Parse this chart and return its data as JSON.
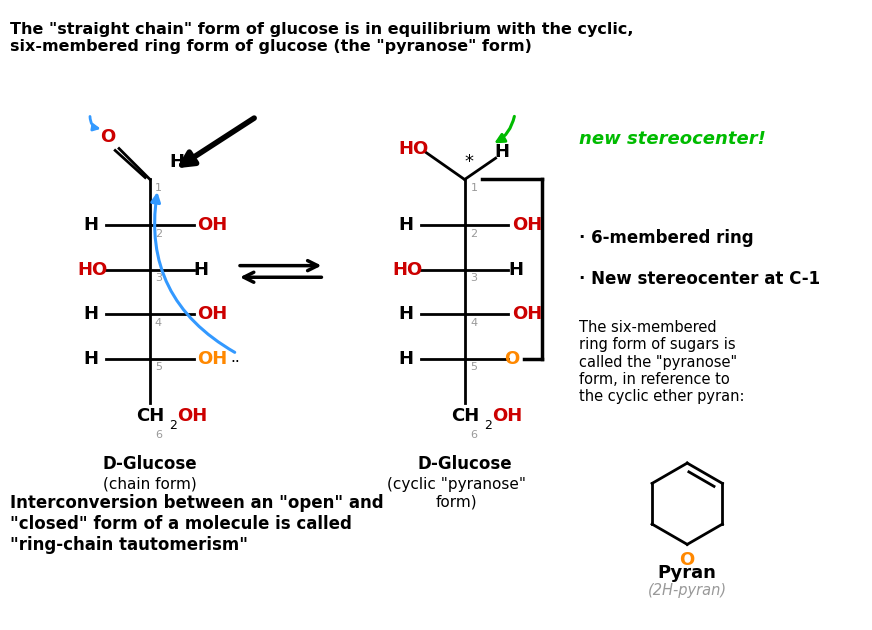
{
  "title_text": "The \"straight chain\" form of glucose is in equilibrium with the cyclic,\nsix-membered ring form of glucose (the \"pyranose\" form)",
  "bottom_text": "Interconversion between an \"open\" and\n\"closed\" form of a molecule is called\n\"ring-chain tautomerism\"",
  "dglucose_chain_label": "D-Glucose",
  "chain_form_label": "(chain form)",
  "dglucose_cyclic_label": "D-Glucose",
  "cyclic_form_label": "(cyclic \"pyranose\"\nform)",
  "new_stereocenter_label": "new stereocenter!",
  "bullet1": "· 6-membered ring",
  "bullet2": "· New stereocenter at C-1",
  "pyranose_text": "The six-membered\nring form of sugars is\ncalled the \"pyranose\"\nform, in reference to\nthe cyclic ether pyran:",
  "pyran_label": "Pyran",
  "pyran_sub_label": "(2H-pyran)",
  "red": "#cc0000",
  "orange": "#ff8800",
  "blue": "#3399ff",
  "green": "#00bb00",
  "gray": "#999999",
  "black": "#000000",
  "bg": "#ffffff"
}
